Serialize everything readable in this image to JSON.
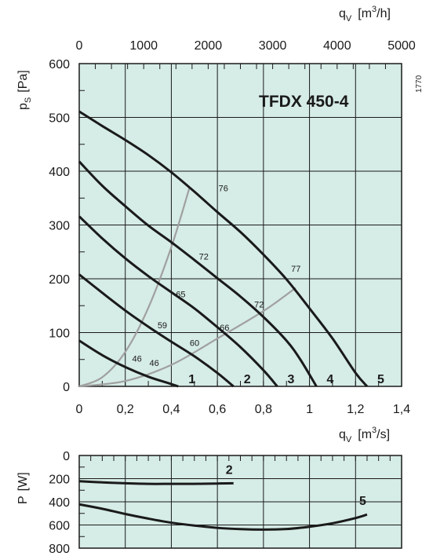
{
  "chart_data": [
    {
      "type": "line",
      "title": "TFDX  450-4",
      "code": "1770",
      "xlabel": {
        "main": "q",
        "sub": "V",
        "unit_pre": "[m",
        "unit_sup": "3",
        "unit_post": "/s]"
      },
      "x2label": {
        "main": "q",
        "sub": "V",
        "unit_pre": "[m",
        "unit_sup": "3",
        "unit_post": "/h]"
      },
      "ylabel": {
        "main": "p",
        "sub": "S",
        "unit": "[Pa]"
      },
      "xlim": [
        0,
        1.4
      ],
      "ylim": [
        0,
        600
      ],
      "x2lim": [
        0,
        5000
      ],
      "x_ticks": [
        "0",
        "0,2",
        "0,4",
        "0,6",
        "0,8",
        "1",
        "1,2",
        "1,4"
      ],
      "x2_ticks": [
        "0",
        "1000",
        "2000",
        "3000",
        "4000",
        "5000"
      ],
      "y_ticks": [
        "0",
        "100",
        "200",
        "300",
        "400",
        "500",
        "600"
      ],
      "grid": true,
      "series": [
        {
          "name": "1",
          "x": [
            0,
            0.1,
            0.2,
            0.3,
            0.38,
            0.43
          ],
          "y": [
            85,
            58,
            36,
            18,
            7,
            0
          ]
        },
        {
          "name": "2",
          "x": [
            0,
            0.1,
            0.2,
            0.3,
            0.4,
            0.5,
            0.6,
            0.67
          ],
          "y": [
            208,
            174,
            141,
            111,
            83,
            56,
            25,
            0
          ]
        },
        {
          "name": "3",
          "x": [
            0,
            0.1,
            0.2,
            0.3,
            0.4,
            0.5,
            0.6,
            0.7,
            0.8,
            0.86
          ],
          "y": [
            316,
            275,
            238,
            205,
            175,
            145,
            110,
            73,
            30,
            0
          ]
        },
        {
          "name": "4",
          "x": [
            0,
            0.1,
            0.2,
            0.3,
            0.4,
            0.5,
            0.6,
            0.7,
            0.8,
            0.9,
            0.96,
            1.03
          ],
          "y": [
            418,
            373,
            335,
            299,
            268,
            235,
            201,
            167,
            129,
            85,
            50,
            0
          ]
        },
        {
          "name": "5",
          "x": [
            0,
            0.1,
            0.2,
            0.3,
            0.4,
            0.5,
            0.6,
            0.7,
            0.8,
            0.9,
            1.0,
            1.1,
            1.2,
            1.25
          ],
          "y": [
            511,
            484,
            458,
            430,
            398,
            362,
            324,
            287,
            245,
            199,
            145,
            89,
            25,
            0
          ]
        }
      ],
      "system_lines": [
        {
          "x": [
            0,
            0.1,
            0.2,
            0.3,
            0.4,
            0.48
          ],
          "y": [
            0,
            17,
            64,
            146,
            259,
            371
          ]
        },
        {
          "x": [
            0,
            0.2,
            0.4,
            0.6,
            0.8,
            0.94
          ],
          "y": [
            0,
            10,
            40,
            89,
            140,
            183
          ]
        }
      ],
      "annotations": [
        {
          "text": "46",
          "x": 0.23,
          "y": 46
        },
        {
          "text": "46",
          "x": 0.305,
          "y": 38
        },
        {
          "text": "59",
          "x": 0.34,
          "y": 108
        },
        {
          "text": "60",
          "x": 0.48,
          "y": 75
        },
        {
          "text": "65",
          "x": 0.42,
          "y": 166
        },
        {
          "text": "66",
          "x": 0.61,
          "y": 104
        },
        {
          "text": "72",
          "x": 0.52,
          "y": 236
        },
        {
          "text": "72",
          "x": 0.76,
          "y": 147
        },
        {
          "text": "76",
          "x": 0.605,
          "y": 363
        },
        {
          "text": "77",
          "x": 0.92,
          "y": 213
        }
      ]
    },
    {
      "type": "line",
      "ylabel": {
        "main": "P",
        "unit": "[W]"
      },
      "xlim": [
        0,
        1.4
      ],
      "ylim": [
        0,
        800
      ],
      "y_inverted": true,
      "y_ticks": [
        "0",
        "200",
        "400",
        "600",
        "800"
      ],
      "grid": true,
      "series": [
        {
          "name": "2",
          "x": [
            0,
            0.1,
            0.2,
            0.3,
            0.4,
            0.5,
            0.6,
            0.67
          ],
          "y": [
            222,
            232,
            240,
            245,
            245,
            245,
            242,
            240
          ]
        },
        {
          "name": "5",
          "x": [
            0,
            0.1,
            0.2,
            0.3,
            0.4,
            0.5,
            0.6,
            0.7,
            0.8,
            0.9,
            1.0,
            1.1,
            1.2,
            1.25
          ],
          "y": [
            422,
            460,
            505,
            545,
            580,
            605,
            625,
            636,
            640,
            635,
            615,
            585,
            540,
            510
          ]
        }
      ]
    }
  ]
}
